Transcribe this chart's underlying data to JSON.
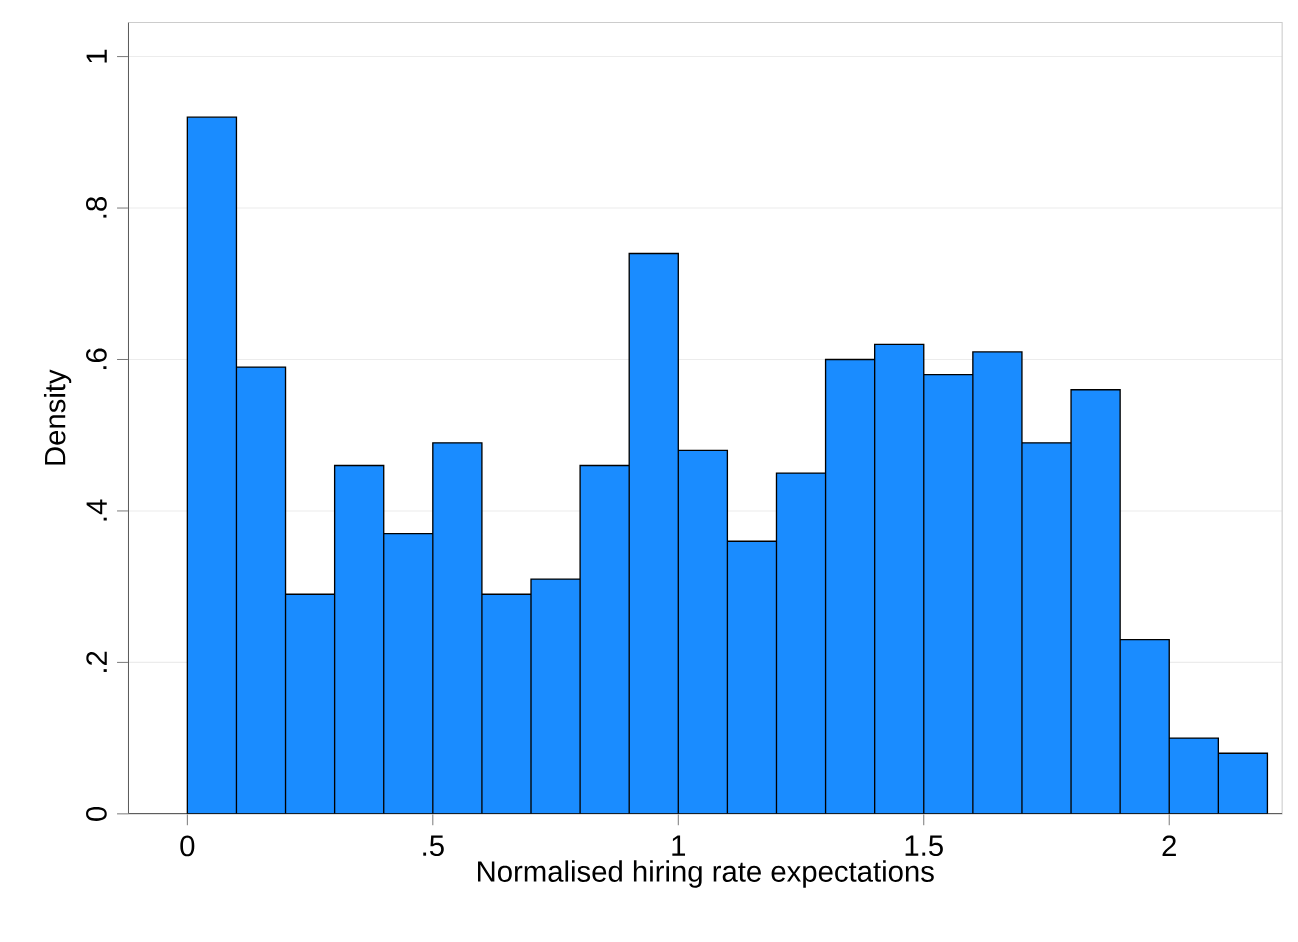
{
  "chart_data": {
    "type": "histogram",
    "xlabel": "Normalised hiring rate expectations",
    "ylabel": "Density",
    "bins": [
      0,
      0.1,
      0.2,
      0.3,
      0.4,
      0.5,
      0.6,
      0.7,
      0.8,
      0.9,
      1.0,
      1.1,
      1.2,
      1.3,
      1.4,
      1.5,
      1.6,
      1.7,
      1.8,
      1.9,
      2.0,
      2.1,
      2.2
    ],
    "values": [
      0.92,
      0.59,
      0.29,
      0.46,
      0.37,
      0.49,
      0.29,
      0.31,
      0.46,
      0.74,
      0.48,
      0.36,
      0.45,
      0.6,
      0.62,
      0.58,
      0.61,
      0.49,
      0.56,
      0.23,
      0.1,
      0.08
    ],
    "color": "#1a8cff",
    "xlim": [
      -0.12,
      2.23
    ],
    "ylim": [
      0,
      1.045
    ],
    "xticks": [
      0,
      {
        "value": 0.5,
        "label": ".5"
      },
      1,
      {
        "value": 1.5,
        "label": "1.5"
      },
      2
    ],
    "yticks": [
      0,
      {
        "value": 0.2,
        "label": ".2"
      },
      {
        "value": 0.4,
        "label": ".4"
      },
      {
        "value": 0.6,
        "label": ".6"
      },
      {
        "value": 0.8,
        "label": ".8"
      },
      1
    ],
    "grid": "y"
  }
}
